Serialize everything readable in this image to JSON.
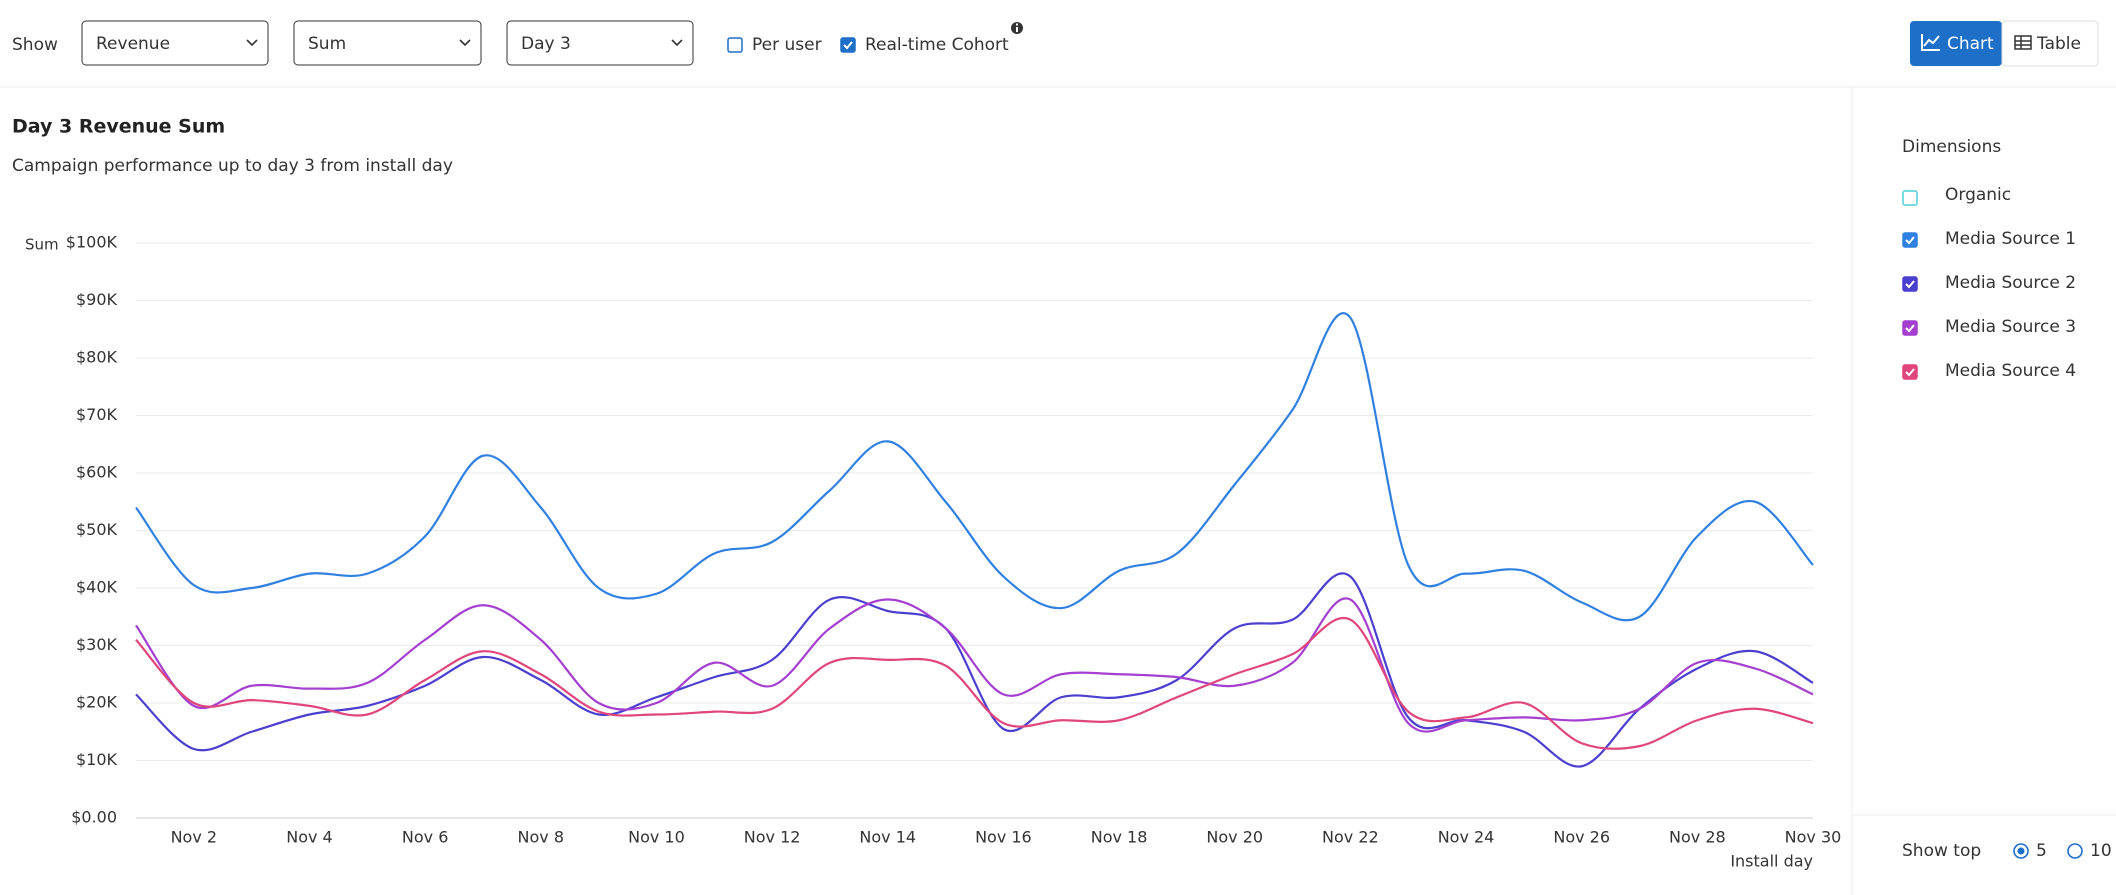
{
  "toolbar": {
    "show_label": "Show",
    "metric": "Revenue",
    "aggregation": "Sum",
    "day": "Day 3",
    "per_user": {
      "label": "Per user",
      "checked": false
    },
    "realtime_cohort": {
      "label": "Real-time Cohort",
      "checked": true
    },
    "view_chart": "Chart",
    "view_table": "Table"
  },
  "sidebar": {
    "heading": "Dimensions",
    "organic": {
      "label": "Organic",
      "checked": false,
      "color": "#4fd1d9"
    },
    "show_top": "Show top",
    "top_options": [
      {
        "label": "5",
        "selected": true
      },
      {
        "label": "10",
        "selected": false
      }
    ]
  },
  "chart_data": {
    "type": "line",
    "title": "Day 3 Revenue Sum",
    "subtitle": "Campaign performance up to day 3 from install day",
    "y_label": "Sum",
    "x_label": "Install day",
    "categories": [
      null,
      "Nov 2",
      null,
      "Nov 4",
      null,
      "Nov 6",
      null,
      "Nov 8",
      null,
      "Nov 10",
      null,
      "Nov 12",
      null,
      "Nov 14",
      null,
      "Nov 16",
      null,
      "Nov 18",
      null,
      "Nov 20",
      null,
      "Nov 22",
      null,
      "Nov 24",
      null,
      "Nov 26",
      null,
      "Nov 28",
      null,
      "Nov 30"
    ],
    "ylim": [
      0,
      100000
    ],
    "yticks": [
      {
        "value": 0,
        "label": "$0.00"
      },
      {
        "value": 10000,
        "label": "$10K"
      },
      {
        "value": 20000,
        "label": "$20K"
      },
      {
        "value": 30000,
        "label": "$30K"
      },
      {
        "value": 40000,
        "label": "$40K"
      },
      {
        "value": 50000,
        "label": "$50K"
      },
      {
        "value": 60000,
        "label": "$60K"
      },
      {
        "value": 70000,
        "label": "$70K"
      },
      {
        "value": 80000,
        "label": "$80K"
      },
      {
        "value": 90000,
        "label": "$90K"
      },
      {
        "value": 100000,
        "label": "$100K"
      }
    ],
    "grid": true,
    "series": [
      {
        "name": "Media Source 1",
        "color": "#2f80e0",
        "values": [
          54000,
          40500,
          40000,
          42500,
          42500,
          49000,
          63000,
          54000,
          40000,
          39000,
          46000,
          48000,
          57000,
          65500,
          55000,
          42000,
          36500,
          43000,
          46000,
          58000,
          71000,
          87000,
          44000,
          42500,
          43000,
          37500,
          35000,
          49000,
          55000,
          44000
        ]
      },
      {
        "name": "Media Source 2",
        "color": "#4a3fcf",
        "values": [
          21500,
          12000,
          15000,
          18000,
          19500,
          23000,
          28000,
          24000,
          18000,
          21000,
          24500,
          27500,
          38000,
          36000,
          33000,
          15500,
          21000,
          21000,
          24000,
          33000,
          34500,
          42000,
          17500,
          17000,
          15000,
          9000,
          19000,
          26000,
          29000,
          23500
        ]
      },
      {
        "name": "Media Source 3",
        "color": "#a43fd0",
        "values": [
          33500,
          19500,
          23000,
          22500,
          23500,
          31000,
          37000,
          31000,
          20000,
          20000,
          27000,
          23000,
          33000,
          38000,
          33000,
          21500,
          25000,
          25000,
          24500,
          23000,
          27000,
          38000,
          16500,
          17000,
          17500,
          17000,
          19000,
          27000,
          26000,
          21500
        ]
      },
      {
        "name": "Media Source 4",
        "color": "#e0457b",
        "values": [
          31000,
          20000,
          20500,
          19500,
          18000,
          24000,
          29000,
          25000,
          18500,
          18000,
          18500,
          19000,
          27000,
          27500,
          26500,
          16500,
          17000,
          17000,
          21000,
          25000,
          28500,
          34500,
          18500,
          17500,
          20000,
          13000,
          12500,
          17000,
          19000,
          16500
        ]
      }
    ]
  }
}
